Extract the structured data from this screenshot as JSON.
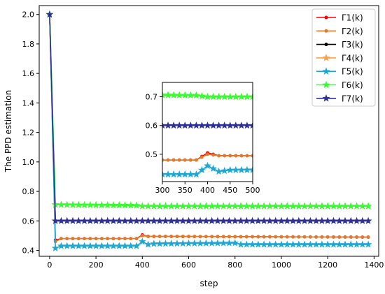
{
  "chart_data": {
    "type": "line",
    "title": "",
    "xlabel": "step",
    "ylabel": "The PPD estimation",
    "xlim": [
      -45,
      1420
    ],
    "ylim": [
      0.36,
      2.06
    ],
    "xticks": [
      0,
      200,
      400,
      600,
      800,
      1000,
      1200,
      1400
    ],
    "yticks": [
      0.4,
      0.6,
      0.8,
      1.0,
      1.2,
      1.4,
      1.6,
      1.8,
      2.0
    ],
    "xtick_labels": [
      "0",
      "200",
      "400",
      "600",
      "800",
      "1000",
      "1200",
      "1400"
    ],
    "ytick_labels": [
      "0.4",
      "0.6",
      "0.8",
      "1.0",
      "1.2",
      "1.4",
      "1.6",
      "1.8",
      "2.0"
    ],
    "grid": false,
    "legend_position": "top-right",
    "series": [
      {
        "name": "Γ1(k)",
        "color": "#ff0000",
        "marker": "dot",
        "points": [
          [
            0,
            2.0
          ],
          [
            25,
            0.47
          ],
          [
            50,
            0.48
          ],
          [
            375,
            0.48
          ],
          [
            400,
            0.505
          ],
          [
            425,
            0.495
          ],
          [
            450,
            0.495
          ],
          [
            1375,
            0.49
          ]
        ]
      },
      {
        "name": "Γ2(k)",
        "color": "#e07b28",
        "marker": "dot",
        "points": [
          [
            0,
            2.0
          ],
          [
            25,
            0.46
          ],
          [
            50,
            0.48
          ],
          [
            375,
            0.48
          ],
          [
            400,
            0.5
          ],
          [
            425,
            0.495
          ],
          [
            1375,
            0.49
          ]
        ]
      },
      {
        "name": "Γ3(k)",
        "color": "#000000",
        "marker": "dot",
        "points": [
          [
            0,
            2.0
          ],
          [
            25,
            0.6
          ],
          [
            1375,
            0.6
          ]
        ]
      },
      {
        "name": "Γ4(k)",
        "color": "#ffa040",
        "marker": "star",
        "points": [
          [
            0,
            2.0
          ],
          [
            25,
            0.71
          ],
          [
            375,
            0.705
          ],
          [
            400,
            0.7
          ],
          [
            1375,
            0.7
          ]
        ]
      },
      {
        "name": "Γ5(k)",
        "color": "#1fa7d4",
        "marker": "star",
        "points": [
          [
            0,
            2.0
          ],
          [
            25,
            0.415
          ],
          [
            50,
            0.43
          ],
          [
            375,
            0.43
          ],
          [
            400,
            0.46
          ],
          [
            425,
            0.44
          ],
          [
            450,
            0.445
          ],
          [
            800,
            0.45
          ],
          [
            825,
            0.44
          ],
          [
            1375,
            0.44
          ]
        ]
      },
      {
        "name": "Γ6(k)",
        "color": "#33ff33",
        "marker": "star",
        "points": [
          [
            0,
            2.0
          ],
          [
            25,
            0.71
          ],
          [
            375,
            0.705
          ],
          [
            400,
            0.7
          ],
          [
            1375,
            0.7
          ]
        ]
      },
      {
        "name": "Γ7(k)",
        "color": "#2e3192",
        "marker": "star",
        "points": [
          [
            0,
            2.0
          ],
          [
            25,
            0.6
          ],
          [
            1375,
            0.6
          ]
        ]
      }
    ],
    "inset": {
      "xlim": [
        300,
        500
      ],
      "ylim": [
        0.405,
        0.75
      ],
      "xticks": [
        300,
        350,
        400,
        450,
        500
      ],
      "yticks": [
        0.5,
        0.6,
        0.7
      ],
      "xtick_labels": [
        "300",
        "350",
        "400",
        "450",
        "500"
      ],
      "ytick_labels": [
        "0.5",
        "0.6",
        "0.7"
      ]
    }
  }
}
